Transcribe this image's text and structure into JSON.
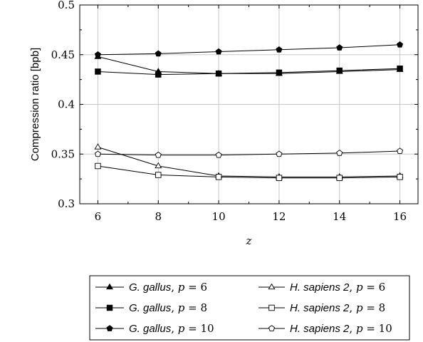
{
  "chart_data": {
    "type": "line",
    "title": "",
    "xlabel": "z",
    "ylabel": "Compression ratio [bpb]",
    "x": [
      6,
      8,
      10,
      12,
      14,
      16
    ],
    "xlim": [
      5.4,
      16.6
    ],
    "ylim": [
      0.3,
      0.5
    ],
    "xticks": [
      "6",
      "8",
      "10",
      "12",
      "14",
      "16"
    ],
    "yticks": [
      "0.3",
      "0.35",
      "0.4",
      "0.45",
      "0.5"
    ],
    "grid": true,
    "legend_position": "bottom",
    "series": [
      {
        "label_species": "G. gallus",
        "label_param": ", p = 6",
        "marker": "triangle",
        "filled": true,
        "values": [
          0.448,
          0.433,
          0.431,
          0.431,
          0.433,
          0.435
        ]
      },
      {
        "label_species": "H. sapiens 2",
        "label_param": ", p = 6",
        "marker": "triangle",
        "filled": false,
        "values": [
          0.357,
          0.338,
          0.328,
          0.327,
          0.327,
          0.328
        ]
      },
      {
        "label_species": "G. gallus",
        "label_param": ", p = 8",
        "marker": "square",
        "filled": true,
        "values": [
          0.433,
          0.43,
          0.431,
          0.432,
          0.434,
          0.436
        ]
      },
      {
        "label_species": "H. sapiens 2",
        "label_param": ", p = 8",
        "marker": "square",
        "filled": false,
        "values": [
          0.338,
          0.329,
          0.327,
          0.326,
          0.326,
          0.327
        ]
      },
      {
        "label_species": "G. gallus",
        "label_param": ", p = 10",
        "marker": "pentagon",
        "filled": true,
        "values": [
          0.45,
          0.451,
          0.453,
          0.455,
          0.457,
          0.46
        ]
      },
      {
        "label_species": "H. sapiens 2",
        "label_param": ", p = 10",
        "marker": "pentagon",
        "filled": false,
        "values": [
          0.35,
          0.349,
          0.349,
          0.35,
          0.351,
          0.353
        ]
      }
    ]
  }
}
